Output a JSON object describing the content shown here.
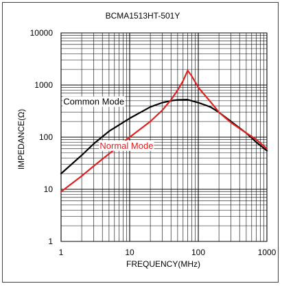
{
  "chart_data": {
    "type": "line",
    "title": "BCMA1513HT-501Y",
    "xlabel": "FREQUENCY(MHz)",
    "ylabel": "IMPEDANCE(Ω)",
    "x_scale": "log",
    "y_scale": "log",
    "xlim": [
      1,
      1000
    ],
    "ylim": [
      1,
      10000
    ],
    "x_ticks": [
      1,
      10,
      100,
      1000
    ],
    "x_tick_labels": [
      "1",
      "10",
      "100",
      "1000"
    ],
    "y_ticks": [
      1,
      10,
      100,
      1000,
      10000
    ],
    "y_tick_labels": [
      "1",
      "10",
      "100",
      "1000",
      "10000"
    ],
    "grid": true,
    "series": [
      {
        "name": "Common Mode",
        "color": "#000000",
        "label_anchor": [
          3,
          420
        ],
        "points": [
          [
            1,
            20
          ],
          [
            2,
            45
          ],
          [
            3,
            75
          ],
          [
            5,
            130
          ],
          [
            10,
            230
          ],
          [
            20,
            380
          ],
          [
            30,
            460
          ],
          [
            40,
            500
          ],
          [
            50,
            520
          ],
          [
            70,
            525
          ],
          [
            100,
            460
          ],
          [
            150,
            380
          ],
          [
            200,
            300
          ],
          [
            300,
            200
          ],
          [
            500,
            120
          ],
          [
            700,
            80
          ],
          [
            1000,
            55
          ]
        ]
      },
      {
        "name": "Normal Mode",
        "color": "#e02020",
        "label_anchor": [
          9,
          60
        ],
        "points": [
          [
            1,
            9
          ],
          [
            2,
            18
          ],
          [
            3,
            28
          ],
          [
            5,
            48
          ],
          [
            10,
            100
          ],
          [
            20,
            200
          ],
          [
            30,
            330
          ],
          [
            40,
            520
          ],
          [
            50,
            800
          ],
          [
            60,
            1200
          ],
          [
            70,
            1900
          ],
          [
            80,
            1500
          ],
          [
            100,
            900
          ],
          [
            150,
            480
          ],
          [
            200,
            300
          ],
          [
            300,
            190
          ],
          [
            500,
            120
          ],
          [
            700,
            90
          ],
          [
            1000,
            60
          ]
        ]
      }
    ]
  }
}
